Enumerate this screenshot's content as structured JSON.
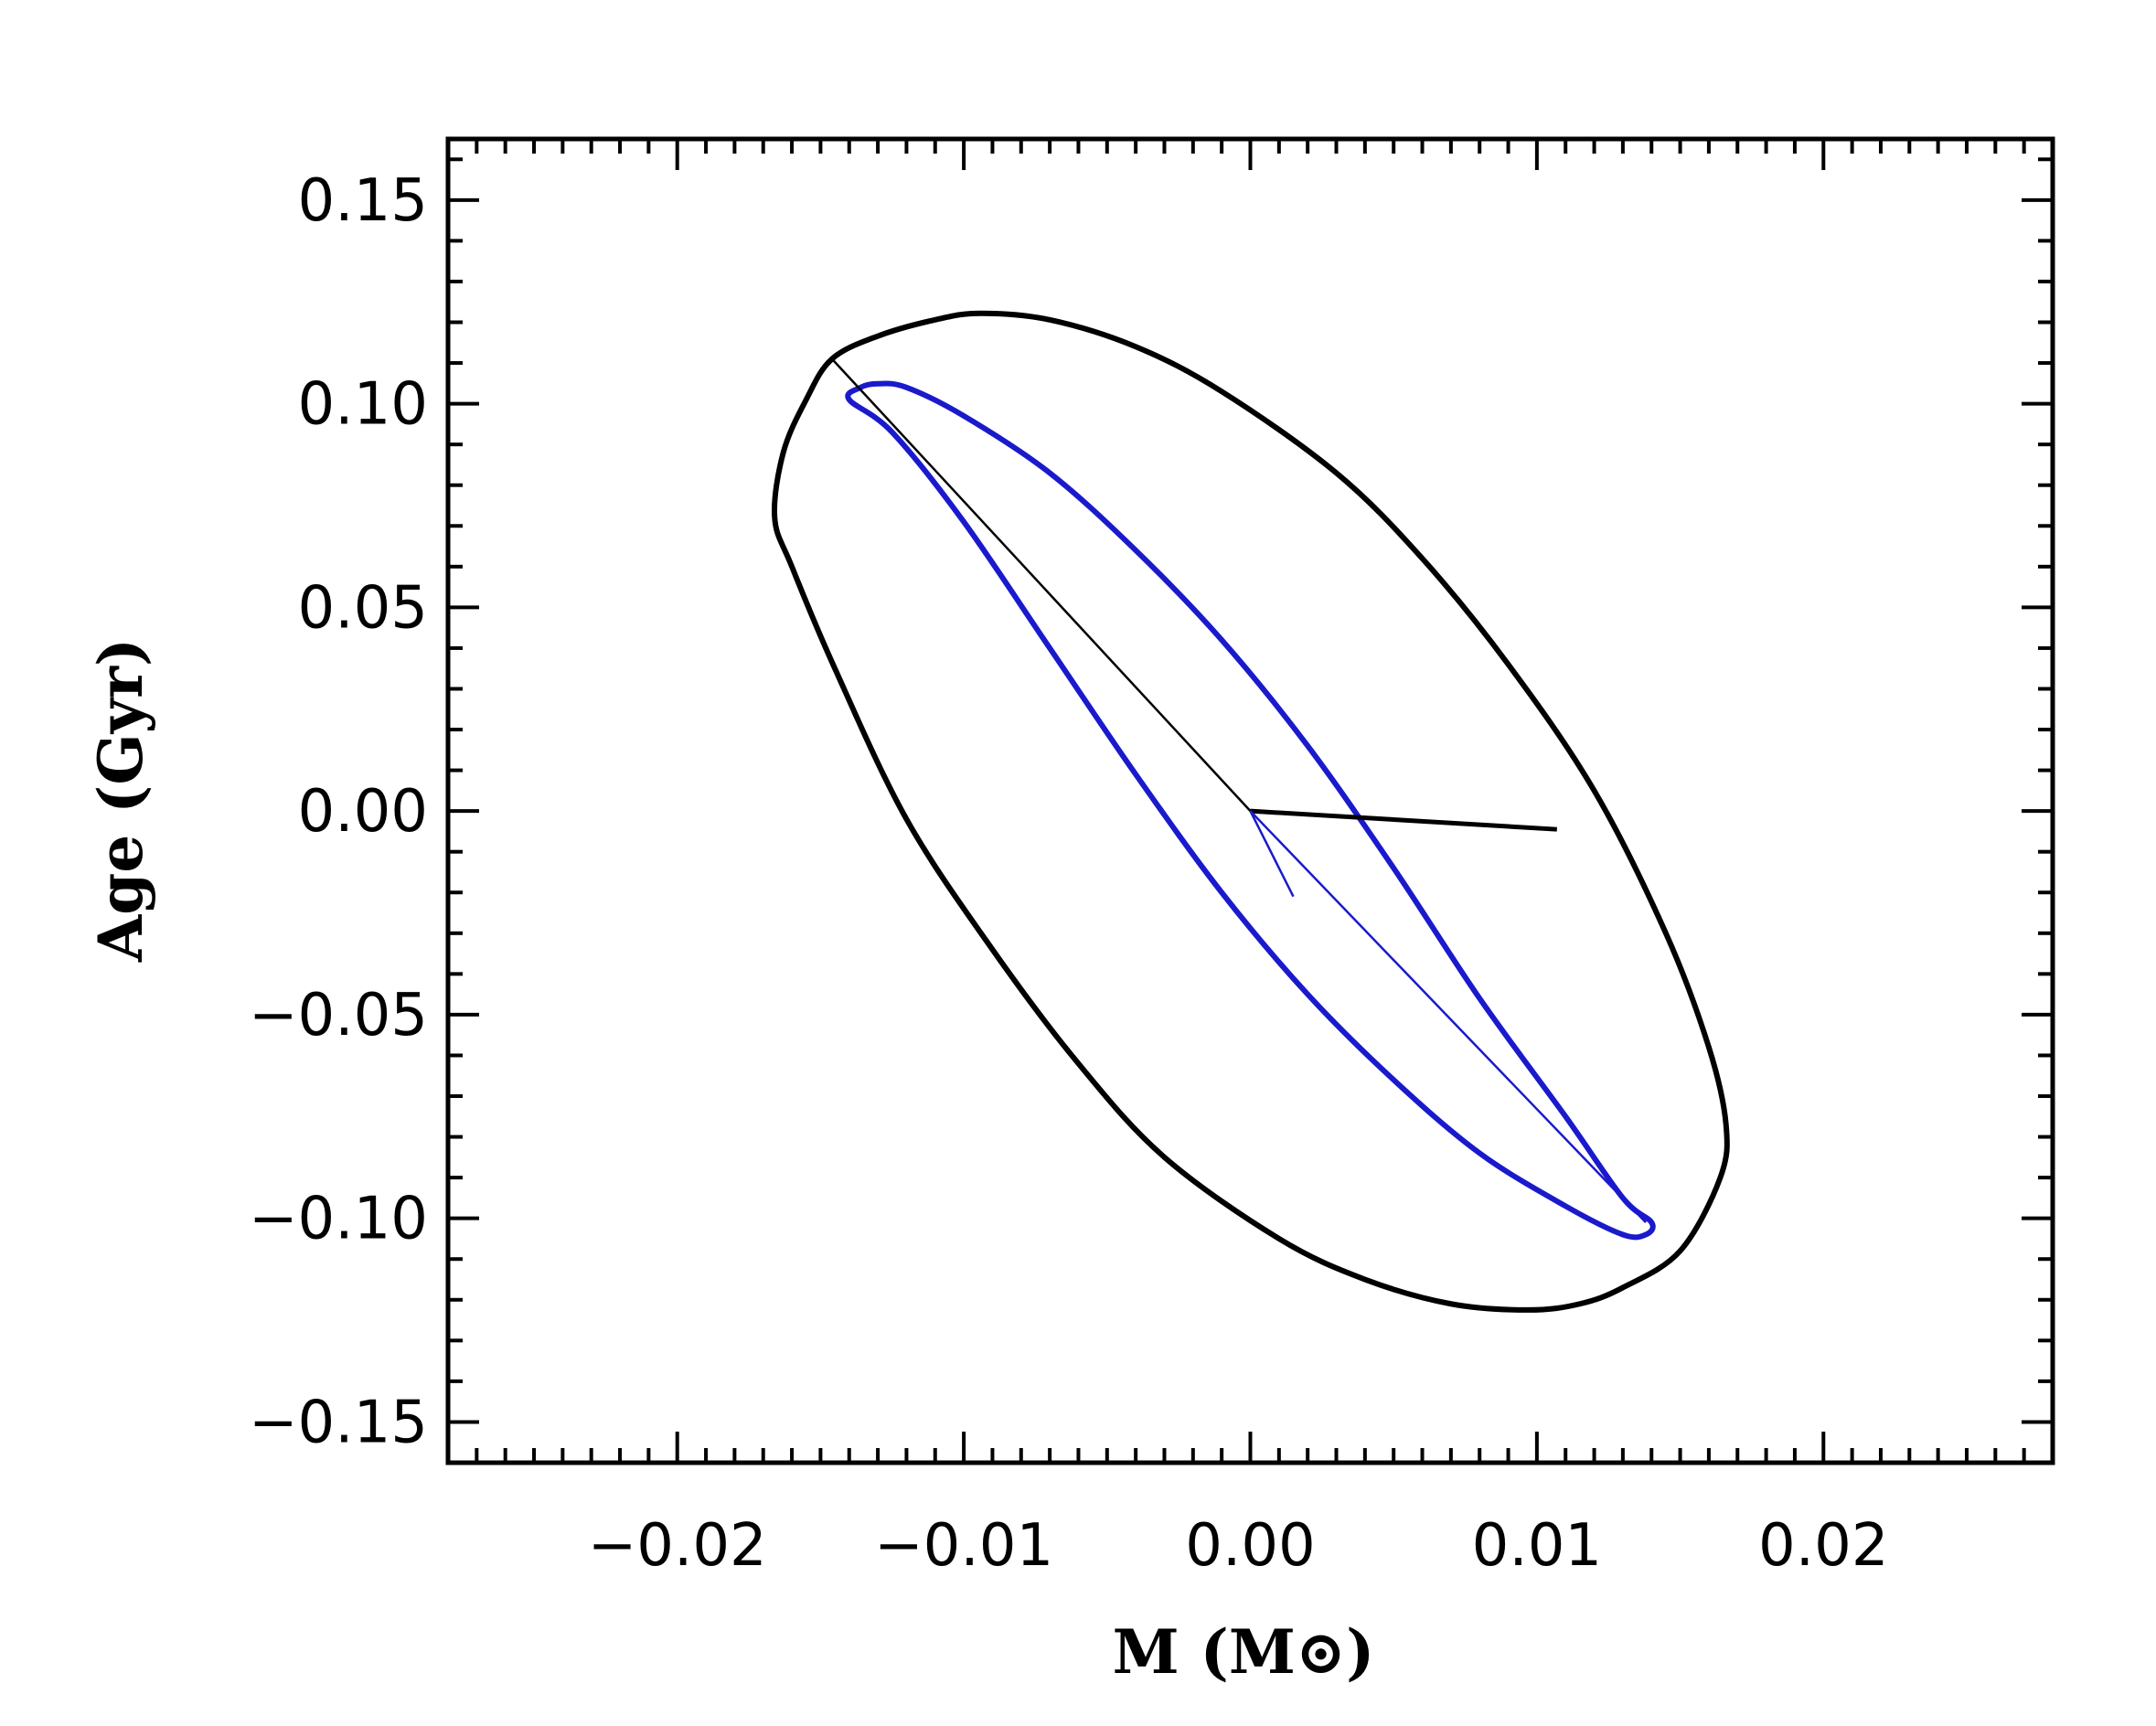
{
  "chart_data": {
    "type": "scatter",
    "title": "",
    "xlabel": "M (M⊙)",
    "ylabel": "Age (Gyr)",
    "xlim": [
      -0.028,
      0.028
    ],
    "ylim": [
      -0.16,
      0.165
    ],
    "x_ticks": [
      -0.02,
      -0.01,
      0.0,
      0.01,
      0.02
    ],
    "x_tick_labels": [
      "−0.02",
      "−0.01",
      "0.00",
      "0.01",
      "0.02"
    ],
    "y_ticks": [
      -0.15,
      -0.1,
      -0.05,
      0.0,
      0.05,
      0.1,
      0.15
    ],
    "y_tick_labels": [
      "−0.15",
      "−0.10",
      "−0.05",
      "0.00",
      "0.05",
      "0.10",
      "0.15"
    ],
    "grid": false,
    "colors": {
      "black": "#000000",
      "blue": "#1a1acc"
    },
    "series": [
      {
        "kind": "ellipse",
        "color": "#000000",
        "points": [
          [
            -0.0146,
            0.111
          ],
          [
            -0.013,
            0.1166
          ],
          [
            -0.011,
            0.1206
          ],
          [
            -0.0094,
            0.1222
          ],
          [
            -0.007,
            0.1206
          ],
          [
            -0.004,
            0.114
          ],
          [
            -0.001,
            0.103
          ],
          [
            0.003,
            0.083
          ],
          [
            0.006,
            0.062
          ],
          [
            0.009,
            0.036
          ],
          [
            0.012,
            0.005
          ],
          [
            0.0145,
            -0.03
          ],
          [
            0.016,
            -0.058
          ],
          [
            0.0166,
            -0.077
          ],
          [
            0.0164,
            -0.09
          ],
          [
            0.015,
            -0.108
          ],
          [
            0.013,
            -0.117
          ],
          [
            0.0115,
            -0.121
          ],
          [
            0.0097,
            -0.1225
          ],
          [
            0.007,
            -0.121
          ],
          [
            0.004,
            -0.115
          ],
          [
            0.001,
            -0.105
          ],
          [
            -0.003,
            -0.085
          ],
          [
            -0.006,
            -0.062
          ],
          [
            -0.009,
            -0.034
          ],
          [
            -0.012,
            -0.002
          ],
          [
            -0.0145,
            0.035
          ],
          [
            -0.016,
            0.06
          ],
          [
            -0.0166,
            0.072
          ],
          [
            -0.0163,
            0.088
          ],
          [
            -0.0155,
            0.101
          ],
          [
            -0.0146,
            0.111
          ]
        ]
      },
      {
        "kind": "ellipse",
        "color": "#1a1acc",
        "points": [
          [
            -0.0136,
            0.104
          ],
          [
            -0.013,
            0.1049
          ],
          [
            -0.012,
            0.104
          ],
          [
            -0.01,
            0.097
          ],
          [
            -0.007,
            0.083
          ],
          [
            -0.004,
            0.064
          ],
          [
            -0.001,
            0.042
          ],
          [
            0.002,
            0.016
          ],
          [
            0.005,
            -0.014
          ],
          [
            0.008,
            -0.046
          ],
          [
            0.011,
            -0.075
          ],
          [
            0.013,
            -0.095
          ],
          [
            0.014,
            -0.101
          ],
          [
            0.0138,
            -0.104
          ],
          [
            0.013,
            -0.104
          ],
          [
            0.011,
            -0.097
          ],
          [
            0.008,
            -0.084
          ],
          [
            0.005,
            -0.066
          ],
          [
            0.002,
            -0.045
          ],
          [
            -0.001,
            -0.02
          ],
          [
            -0.004,
            0.009
          ],
          [
            -0.007,
            0.04
          ],
          [
            -0.01,
            0.071
          ],
          [
            -0.0125,
            0.093
          ],
          [
            -0.014,
            0.101
          ],
          [
            -0.0136,
            0.104
          ]
        ]
      },
      {
        "kind": "segment",
        "color": "#000000",
        "points": [
          [
            -0.0146,
            0.111
          ],
          [
            0.0,
            0.0
          ]
        ]
      },
      {
        "kind": "segment",
        "color": "#000000",
        "points": [
          [
            0.0,
            0.0
          ],
          [
            0.0107,
            -0.0045
          ]
        ]
      },
      {
        "kind": "segment",
        "color": "#1a1acc",
        "points": [
          [
            0.0,
            0.0
          ],
          [
            0.0015,
            -0.021
          ]
        ]
      },
      {
        "kind": "segment",
        "color": "#1a1acc",
        "points": [
          [
            0.0,
            0.0
          ],
          [
            0.0138,
            -0.101
          ]
        ]
      }
    ]
  }
}
